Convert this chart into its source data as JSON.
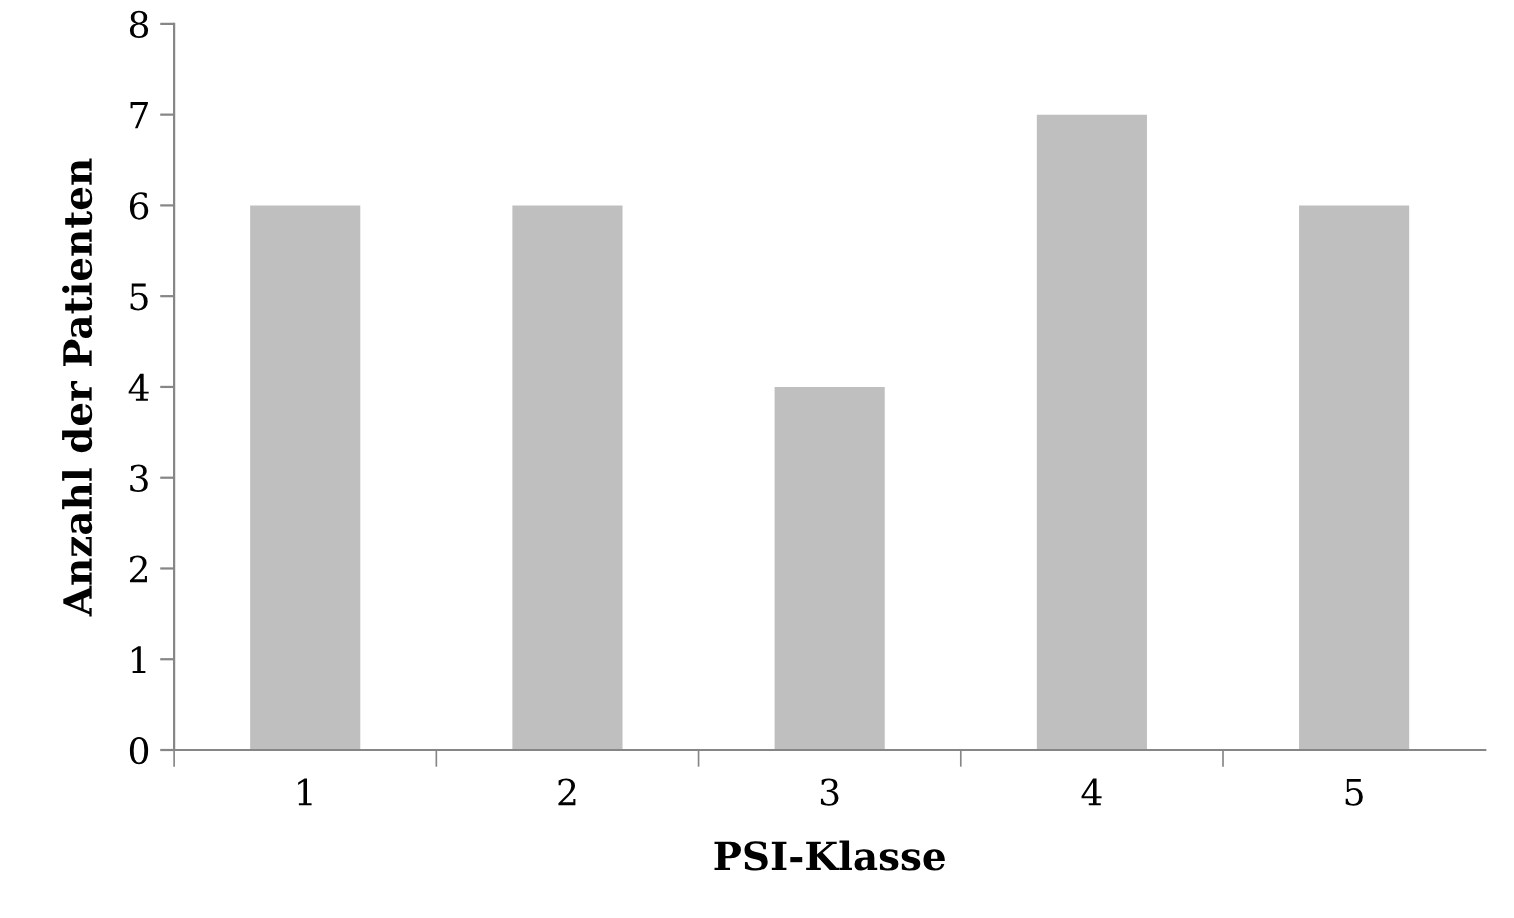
{
  "chart_data": {
    "type": "bar",
    "xlabel": "PSI-Klasse",
    "ylabel": "Anzahl der Patienten",
    "categories": [
      "1",
      "2",
      "3",
      "4",
      "5"
    ],
    "values": [
      6,
      6,
      4,
      7,
      6
    ],
    "color": "#bfbfbf",
    "ylim": [
      0,
      8
    ],
    "yticks": [
      0,
      1,
      2,
      3,
      4,
      5,
      6,
      7,
      8
    ],
    "grid": false,
    "legend": false
  }
}
